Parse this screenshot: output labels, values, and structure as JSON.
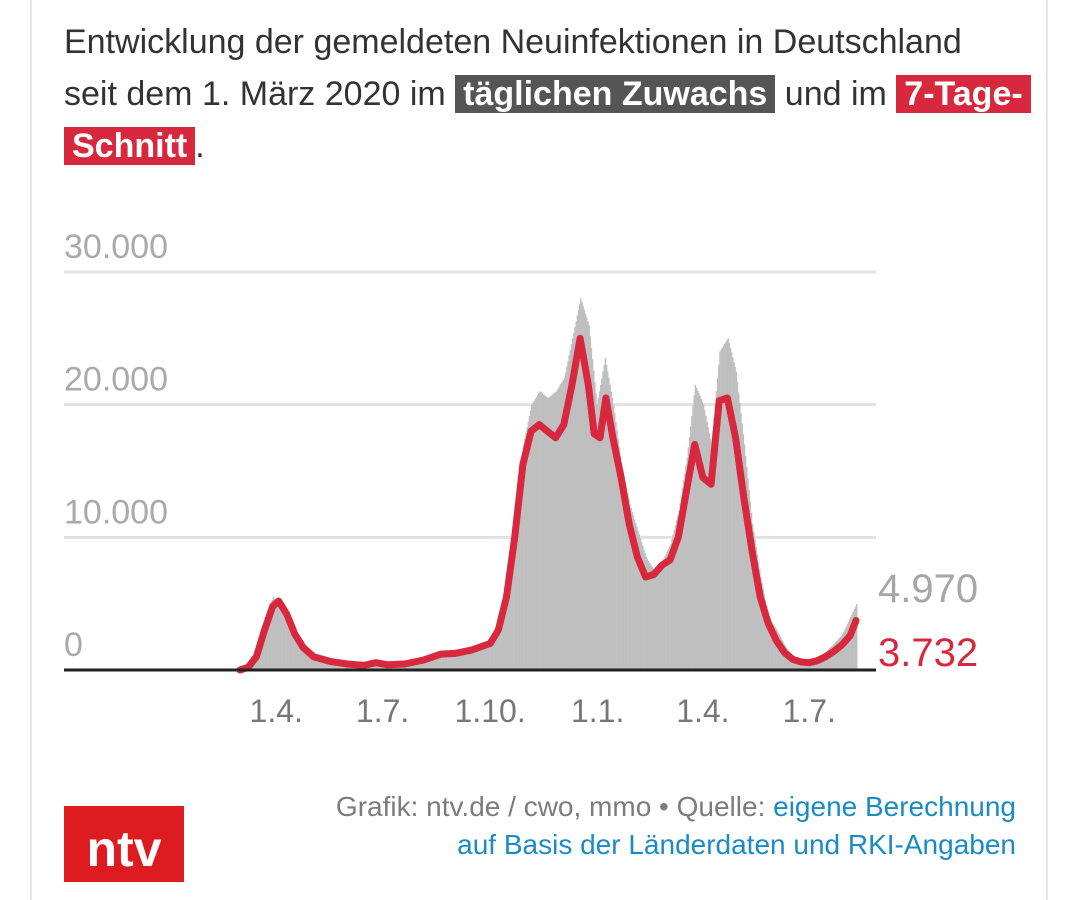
{
  "title": {
    "text_before": "Entwicklung der gemeldeten Neuinfektionen in Deutschland seit dem 1. März 2020 im ",
    "highlight_daily": "täglichen Zuwachs",
    "text_middle": " und im ",
    "highlight_avg": "7-Tage-Schnitt",
    "text_end": "."
  },
  "colors": {
    "daily_bars": "#bfbfbf",
    "avg_line": "#d8283d",
    "grid": "#e2e2e2",
    "tick_text": "#aaaaaa",
    "brand": "#dd1c22",
    "link": "#1b8bc4"
  },
  "chart_data": {
    "type": "bar",
    "ylim": [
      0,
      30000
    ],
    "yticks": [
      {
        "value": 0,
        "label": "0"
      },
      {
        "value": 10000,
        "label": "10.000"
      },
      {
        "value": 20000,
        "label": "20.000"
      },
      {
        "value": 30000,
        "label": "30.000"
      }
    ],
    "xticks": [
      {
        "date": "2020-04-01",
        "label": "1.4."
      },
      {
        "date": "2020-07-01",
        "label": "1.7."
      },
      {
        "date": "2020-10-01",
        "label": "1.10."
      },
      {
        "date": "2021-01-01",
        "label": "1.1."
      },
      {
        "date": "2021-04-01",
        "label": "1.4."
      },
      {
        "date": "2021-07-01",
        "label": "1.7."
      }
    ],
    "x_range": [
      "2020-03-01",
      "2021-08-10"
    ],
    "series": [
      {
        "role": "daily",
        "end_label": "4.970",
        "values": [
          [
            "2020-03-01",
            0
          ],
          [
            "2020-03-08",
            300
          ],
          [
            "2020-03-15",
            1500
          ],
          [
            "2020-03-22",
            4000
          ],
          [
            "2020-03-29",
            5500
          ],
          [
            "2020-04-05",
            4500
          ],
          [
            "2020-04-12",
            3000
          ],
          [
            "2020-04-19",
            2000
          ],
          [
            "2020-04-26",
            1300
          ],
          [
            "2020-05-03",
            900
          ],
          [
            "2020-05-17",
            600
          ],
          [
            "2020-06-01",
            400
          ],
          [
            "2020-06-20",
            500
          ],
          [
            "2020-07-01",
            400
          ],
          [
            "2020-07-20",
            500
          ],
          [
            "2020-08-05",
            800
          ],
          [
            "2020-08-20",
            1400
          ],
          [
            "2020-09-01",
            1200
          ],
          [
            "2020-09-15",
            1600
          ],
          [
            "2020-10-01",
            2000
          ],
          [
            "2020-10-08",
            3500
          ],
          [
            "2020-10-15",
            6000
          ],
          [
            "2020-10-22",
            11000
          ],
          [
            "2020-10-29",
            17000
          ],
          [
            "2020-11-05",
            20000
          ],
          [
            "2020-11-12",
            21000
          ],
          [
            "2020-11-19",
            20500
          ],
          [
            "2020-11-26",
            21000
          ],
          [
            "2020-12-03",
            22000
          ],
          [
            "2020-12-10",
            25000
          ],
          [
            "2020-12-17",
            28000
          ],
          [
            "2020-12-24",
            26000
          ],
          [
            "2020-12-31",
            20000
          ],
          [
            "2021-01-07",
            23500
          ],
          [
            "2021-01-14",
            20000
          ],
          [
            "2021-01-21",
            15500
          ],
          [
            "2021-01-28",
            12500
          ],
          [
            "2021-02-04",
            10500
          ],
          [
            "2021-02-11",
            8500
          ],
          [
            "2021-02-18",
            7500
          ],
          [
            "2021-02-25",
            8200
          ],
          [
            "2021-03-04",
            9500
          ],
          [
            "2021-03-11",
            12000
          ],
          [
            "2021-03-18",
            16000
          ],
          [
            "2021-03-25",
            21500
          ],
          [
            "2021-04-01",
            20000
          ],
          [
            "2021-04-08",
            17000
          ],
          [
            "2021-04-15",
            24000
          ],
          [
            "2021-04-22",
            25000
          ],
          [
            "2021-04-29",
            22500
          ],
          [
            "2021-05-06",
            17000
          ],
          [
            "2021-05-13",
            11000
          ],
          [
            "2021-05-20",
            7000
          ],
          [
            "2021-05-27",
            4000
          ],
          [
            "2021-06-03",
            3000
          ],
          [
            "2021-06-10",
            1800
          ],
          [
            "2021-06-17",
            1000
          ],
          [
            "2021-06-24",
            700
          ],
          [
            "2021-07-01",
            650
          ],
          [
            "2021-07-08",
            900
          ],
          [
            "2021-07-15",
            1400
          ],
          [
            "2021-07-22",
            2000
          ],
          [
            "2021-07-29",
            2700
          ],
          [
            "2021-08-05",
            4000
          ],
          [
            "2021-08-10",
            4970
          ]
        ]
      },
      {
        "role": "7-day average",
        "end_label": "3.732",
        "values": [
          [
            "2020-03-01",
            0
          ],
          [
            "2020-03-08",
            200
          ],
          [
            "2020-03-15",
            1000
          ],
          [
            "2020-03-22",
            3000
          ],
          [
            "2020-03-29",
            4800
          ],
          [
            "2020-04-03",
            5200
          ],
          [
            "2020-04-10",
            4200
          ],
          [
            "2020-04-17",
            2700
          ],
          [
            "2020-04-24",
            1700
          ],
          [
            "2020-05-03",
            1000
          ],
          [
            "2020-05-17",
            650
          ],
          [
            "2020-06-01",
            450
          ],
          [
            "2020-06-15",
            350
          ],
          [
            "2020-06-25",
            550
          ],
          [
            "2020-07-05",
            400
          ],
          [
            "2020-07-20",
            450
          ],
          [
            "2020-08-05",
            750
          ],
          [
            "2020-08-20",
            1200
          ],
          [
            "2020-09-01",
            1250
          ],
          [
            "2020-09-15",
            1500
          ],
          [
            "2020-10-01",
            2000
          ],
          [
            "2020-10-08",
            3000
          ],
          [
            "2020-10-15",
            5500
          ],
          [
            "2020-10-22",
            10000
          ],
          [
            "2020-10-29",
            15500
          ],
          [
            "2020-11-05",
            18000
          ],
          [
            "2020-11-12",
            18500
          ],
          [
            "2020-11-19",
            18000
          ],
          [
            "2020-11-26",
            17500
          ],
          [
            "2020-12-03",
            18500
          ],
          [
            "2020-12-10",
            21500
          ],
          [
            "2020-12-17",
            25000
          ],
          [
            "2020-12-24",
            21500
          ],
          [
            "2020-12-29",
            17800
          ],
          [
            "2021-01-03",
            17500
          ],
          [
            "2021-01-08",
            20500
          ],
          [
            "2021-01-14",
            17500
          ],
          [
            "2021-01-21",
            14500
          ],
          [
            "2021-01-28",
            11000
          ],
          [
            "2021-02-04",
            8500
          ],
          [
            "2021-02-11",
            7000
          ],
          [
            "2021-02-18",
            7200
          ],
          [
            "2021-02-25",
            7900
          ],
          [
            "2021-03-04",
            8300
          ],
          [
            "2021-03-11",
            10000
          ],
          [
            "2021-03-18",
            13500
          ],
          [
            "2021-03-25",
            17000
          ],
          [
            "2021-04-01",
            14500
          ],
          [
            "2021-04-08",
            14000
          ],
          [
            "2021-04-15",
            20300
          ],
          [
            "2021-04-22",
            20500
          ],
          [
            "2021-04-29",
            17500
          ],
          [
            "2021-05-06",
            13000
          ],
          [
            "2021-05-13",
            9000
          ],
          [
            "2021-05-20",
            5500
          ],
          [
            "2021-05-27",
            3500
          ],
          [
            "2021-06-03",
            2200
          ],
          [
            "2021-06-10",
            1300
          ],
          [
            "2021-06-17",
            800
          ],
          [
            "2021-06-24",
            600
          ],
          [
            "2021-07-01",
            550
          ],
          [
            "2021-07-08",
            700
          ],
          [
            "2021-07-15",
            1000
          ],
          [
            "2021-07-22",
            1400
          ],
          [
            "2021-07-29",
            1900
          ],
          [
            "2021-08-05",
            2600
          ],
          [
            "2021-08-10",
            3732
          ]
        ]
      }
    ]
  },
  "footer": {
    "logo_text": "ntv",
    "credit": "Grafik: ntv.de / cwo, mmo • Quelle: ",
    "source_link": "eigene Berechnung auf Basis der Länderdaten und RKI-Angaben"
  }
}
